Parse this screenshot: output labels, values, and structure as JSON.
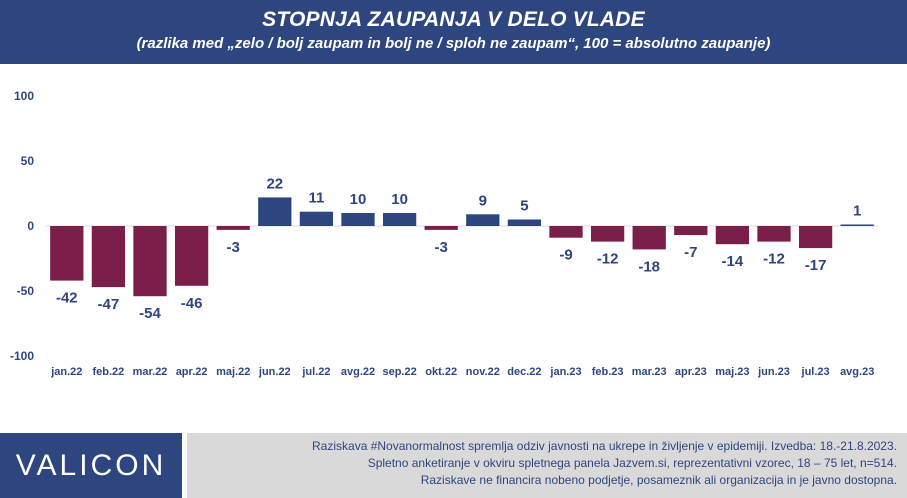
{
  "header": {
    "title": "STOPNJA ZAUPANJA V DELO VLADE",
    "subtitle": "(razlika med „zelo / bolj zaupam in bolj ne / sploh ne zaupam“, 100 = absolutno zaupanje)"
  },
  "chart_data": {
    "type": "bar",
    "categories": [
      "jan.22",
      "feb.22",
      "mar.22",
      "apr.22",
      "maj.22",
      "jun.22",
      "jul.22",
      "avg.22",
      "sep.22",
      "okt.22",
      "nov.22",
      "dec.22",
      "jan.23",
      "feb.23",
      "mar.23",
      "apr.23",
      "maj.23",
      "jun.23",
      "jul.23",
      "avg.23"
    ],
    "values": [
      -42,
      -47,
      -54,
      -46,
      -3,
      22,
      11,
      10,
      10,
      -3,
      9,
      5,
      -9,
      -12,
      -18,
      -7,
      -14,
      -12,
      -17,
      1
    ],
    "ylim": [
      -100,
      100
    ],
    "yticks": [
      100,
      50,
      0,
      -50,
      -100
    ],
    "colors": {
      "positive": "#2e4680",
      "negative": "#7b1e4a",
      "label": "#2e4680",
      "axis": "#d9d9d9"
    },
    "grid": false,
    "legend": "none"
  },
  "footer": {
    "logo": "VALICON",
    "lines": [
      "Raziskava #Novanormalnost spremlja odziv javnosti na ukrepe in življenje v epidemiji. Izvedba: 18.-21.8.2023.",
      "Spletno anketiranje v okviru spletnega panela Jazvem.si, reprezentativni vzorec, 18 – 75 let, n=514.",
      "Raziskave ne financira nobeno podjetje, posameznik ali organizacija in je javno dostopna."
    ]
  }
}
